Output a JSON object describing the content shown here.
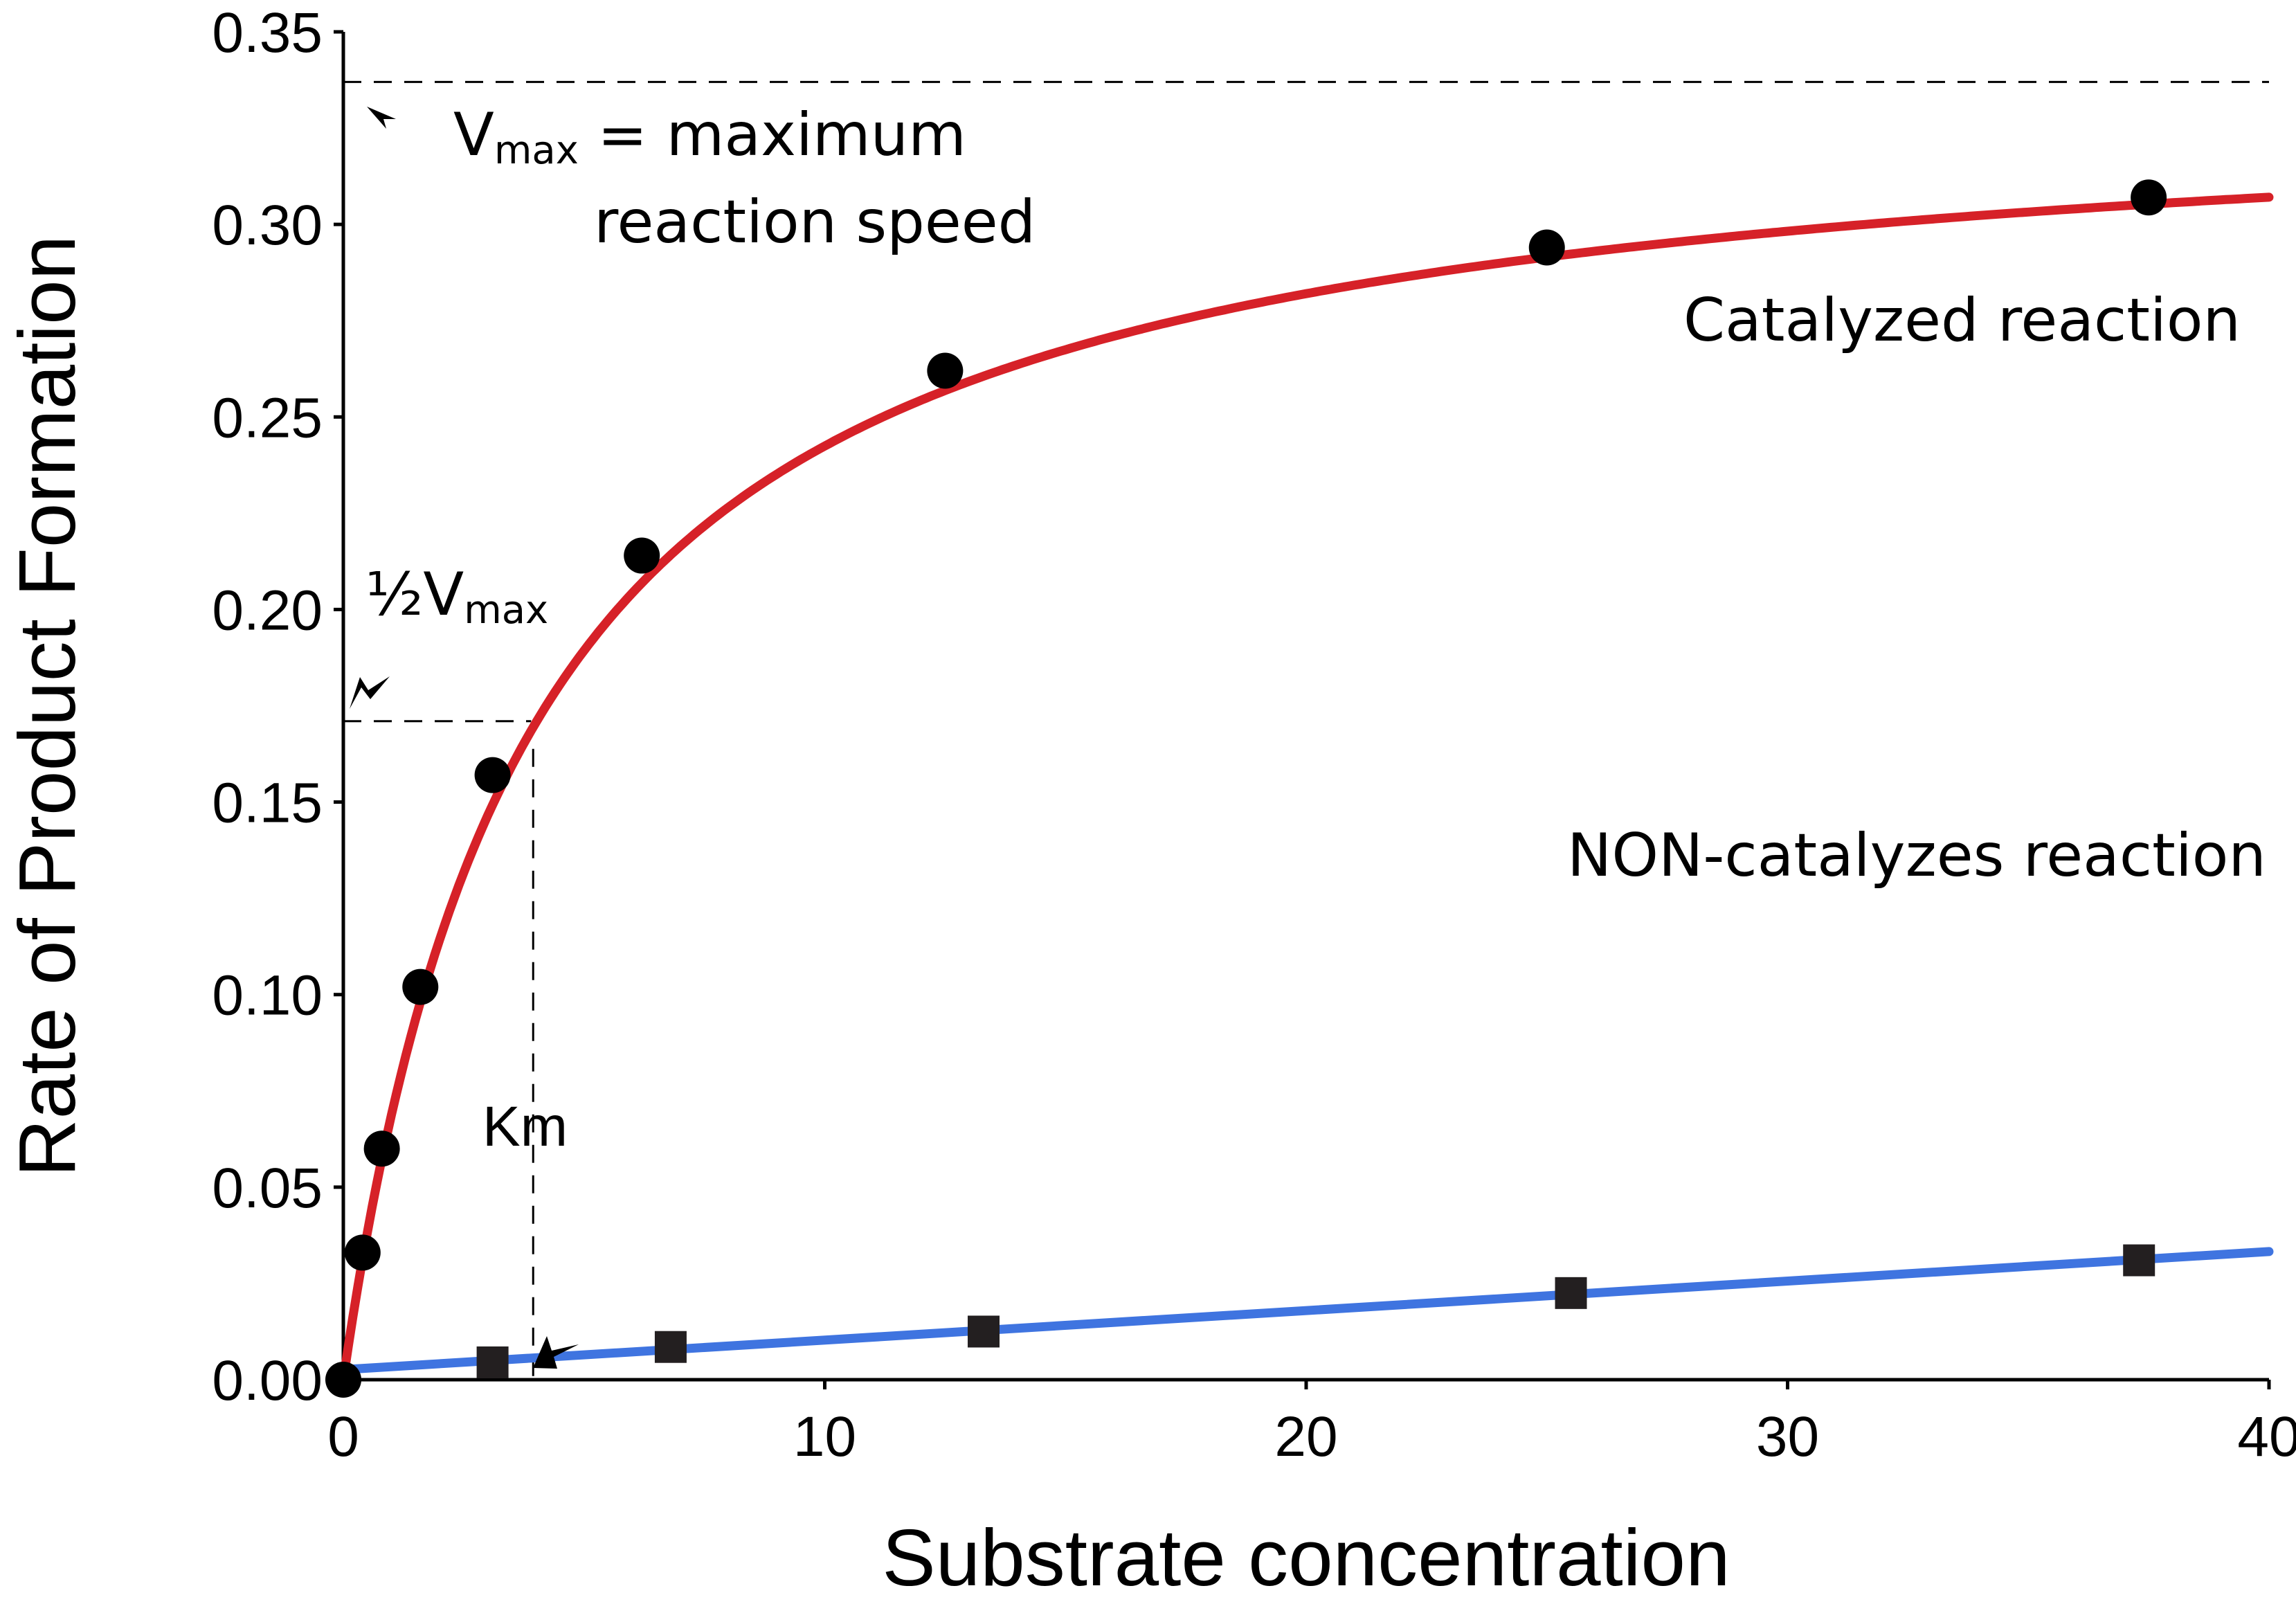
{
  "chart_data": {
    "type": "scatter",
    "xlabel": "Substrate concentration",
    "ylabel": "Rate of Product Formation",
    "xlim": [
      0,
      40
    ],
    "ylim": [
      0,
      0.35
    ],
    "x_ticks": [
      "0",
      "10",
      "20",
      "30",
      "40"
    ],
    "y_ticks": [
      "0.00",
      "0.05",
      "0.10",
      "0.15",
      "0.20",
      "0.25",
      "0.30",
      "0.35"
    ],
    "grid": false,
    "vmax": 0.337,
    "half_vmax": 0.171,
    "km": 3.9,
    "series": [
      {
        "name": "Catalyzed reaction",
        "color": "#d62128",
        "marker": "circle",
        "x": [
          0,
          0.4,
          0.8,
          1.6,
          3.1,
          6.2,
          12.5,
          25,
          37.5
        ],
        "y": [
          0.0,
          0.033,
          0.06,
          0.102,
          0.157,
          0.214,
          0.262,
          0.294,
          0.307
        ]
      },
      {
        "name": "NON-catalyzes reaction",
        "color": "#3f74e0",
        "marker": "square",
        "x": [
          3.1,
          6.8,
          13.3,
          25.5,
          37.3
        ],
        "y": [
          0.0045,
          0.0085,
          0.0125,
          0.0225,
          0.031
        ]
      }
    ],
    "annotations": {
      "vmax_main": "V",
      "vmax_sub": "max",
      "vmax_text": " = maximum",
      "vmax_text2": "reaction speed",
      "half_prefix": "½V",
      "half_sub": "max",
      "km_label": "Km"
    }
  }
}
